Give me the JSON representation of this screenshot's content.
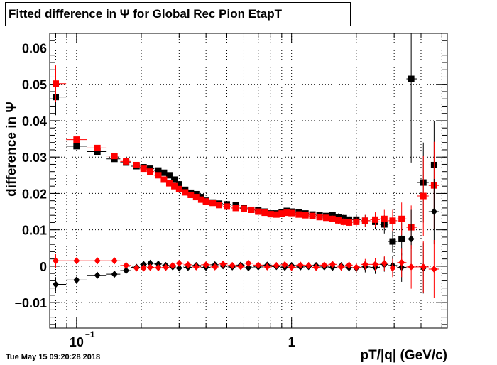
{
  "chart_data": {
    "type": "scatter",
    "title": "Fitted difference in  Ψ  for Global Rec Pion EtapT",
    "xlabel": "pT/|q| (GeV/c)",
    "ylabel": "difference in Ψ",
    "x_scale": "log",
    "xlim": [
      0.075,
      5.3
    ],
    "ylim": [
      -0.017,
      0.064
    ],
    "grid": true,
    "x_tick_labels": [
      {
        "value": 0.1,
        "base": "10",
        "exp": "−1"
      },
      {
        "value": 1,
        "base": "1",
        "exp": ""
      }
    ],
    "y_ticks": [
      -0.01,
      0,
      0.01,
      0.02,
      0.03,
      0.04,
      0.05,
      0.06
    ],
    "y_tick_labels": [
      "−0.01",
      "0",
      "0.01",
      "0.02",
      "0.03",
      "0.04",
      "0.05",
      "0.06"
    ],
    "series": [
      {
        "color": "#000000",
        "marker": "square",
        "x": [
          0.08,
          0.1,
          0.125,
          0.15,
          0.17,
          0.19,
          0.205,
          0.22,
          0.24,
          0.255,
          0.27,
          0.285,
          0.3,
          0.32,
          0.34,
          0.36,
          0.38,
          0.4,
          0.43,
          0.46,
          0.5,
          0.55,
          0.6,
          0.65,
          0.7,
          0.75,
          0.8,
          0.85,
          0.9,
          0.95,
          1.0,
          1.08,
          1.16,
          1.25,
          1.35,
          1.45,
          1.55,
          1.65,
          1.75,
          1.85,
          2.0,
          2.2,
          2.45,
          2.7,
          2.95,
          3.25,
          3.6,
          4.1,
          4.6
        ],
        "y": [
          0.0465,
          0.033,
          0.0315,
          0.0295,
          0.0285,
          0.0275,
          0.0272,
          0.0268,
          0.0263,
          0.0257,
          0.025,
          0.0238,
          0.0225,
          0.021,
          0.0202,
          0.0198,
          0.019,
          0.018,
          0.0175,
          0.0172,
          0.017,
          0.0168,
          0.016,
          0.0155,
          0.0153,
          0.015,
          0.0145,
          0.0145,
          0.0148,
          0.0152,
          0.015,
          0.0148,
          0.0145,
          0.0142,
          0.014,
          0.0138,
          0.014,
          0.0135,
          0.0132,
          0.0128,
          0.0128,
          0.0125,
          0.0122,
          0.0115,
          0.0068,
          0.0075,
          0.0515,
          0.023,
          0.0278
        ],
        "y_err": [
          0.005,
          0.0008,
          0.0006,
          0.0005,
          0.0004,
          0.0004,
          0.0004,
          0.0004,
          0.0004,
          0.0004,
          0.0004,
          0.0004,
          0.0004,
          0.0004,
          0.0004,
          0.0004,
          0.0004,
          0.0004,
          0.0004,
          0.0004,
          0.0004,
          0.0004,
          0.0005,
          0.0005,
          0.0005,
          0.0005,
          0.0005,
          0.0005,
          0.0006,
          0.0006,
          0.0006,
          0.0006,
          0.0007,
          0.0007,
          0.0008,
          0.0008,
          0.0009,
          0.001,
          0.0011,
          0.0012,
          0.0014,
          0.0016,
          0.002,
          0.0025,
          0.003,
          0.0045,
          0.023,
          0.011,
          0.012
        ]
      },
      {
        "color": "#ff0000",
        "marker": "square",
        "x": [
          0.08,
          0.1,
          0.125,
          0.15,
          0.17,
          0.19,
          0.205,
          0.22,
          0.24,
          0.255,
          0.27,
          0.285,
          0.3,
          0.32,
          0.34,
          0.36,
          0.38,
          0.4,
          0.43,
          0.46,
          0.5,
          0.55,
          0.6,
          0.65,
          0.7,
          0.75,
          0.8,
          0.85,
          0.9,
          0.95,
          1.0,
          1.08,
          1.16,
          1.25,
          1.35,
          1.45,
          1.55,
          1.65,
          1.75,
          1.85,
          2.0,
          2.2,
          2.45,
          2.7,
          2.95,
          3.25,
          3.6,
          4.1,
          4.6
        ],
        "y": [
          0.0502,
          0.0348,
          0.0325,
          0.0303,
          0.0288,
          0.0278,
          0.0268,
          0.026,
          0.025,
          0.0238,
          0.0228,
          0.022,
          0.0212,
          0.0203,
          0.0196,
          0.019,
          0.0183,
          0.0178,
          0.0174,
          0.0168,
          0.0164,
          0.016,
          0.0158,
          0.0155,
          0.015,
          0.0147,
          0.0143,
          0.0142,
          0.0145,
          0.0147,
          0.0146,
          0.0142,
          0.014,
          0.0138,
          0.0135,
          0.0133,
          0.013,
          0.0126,
          0.0122,
          0.012,
          0.0122,
          0.0125,
          0.0128,
          0.013,
          0.0125,
          0.013,
          0.0107,
          0.0193,
          0.0222
        ],
        "y_err": [
          0.005,
          0.0008,
          0.0006,
          0.0005,
          0.0004,
          0.0004,
          0.0004,
          0.0004,
          0.0004,
          0.0004,
          0.0004,
          0.0004,
          0.0004,
          0.0004,
          0.0004,
          0.0004,
          0.0004,
          0.0004,
          0.0004,
          0.0004,
          0.0004,
          0.0004,
          0.0005,
          0.0005,
          0.0005,
          0.0005,
          0.0005,
          0.0005,
          0.0006,
          0.0006,
          0.0006,
          0.0006,
          0.0007,
          0.0007,
          0.0008,
          0.0008,
          0.0009,
          0.001,
          0.0011,
          0.0012,
          0.0014,
          0.0016,
          0.002,
          0.0025,
          0.003,
          0.0045,
          0.006,
          0.011,
          0.012
        ]
      },
      {
        "color": "#000000",
        "marker": "diamond",
        "x": [
          0.08,
          0.1,
          0.125,
          0.15,
          0.17,
          0.19,
          0.205,
          0.22,
          0.24,
          0.26,
          0.28,
          0.3,
          0.33,
          0.36,
          0.4,
          0.44,
          0.48,
          0.53,
          0.58,
          0.63,
          0.7,
          0.77,
          0.85,
          0.93,
          1.0,
          1.1,
          1.2,
          1.3,
          1.42,
          1.55,
          1.7,
          1.85,
          2.0,
          2.2,
          2.45,
          2.7,
          2.95,
          3.25,
          3.6,
          4.1,
          4.6
        ],
        "y": [
          -0.005,
          -0.0038,
          -0.0025,
          -0.0022,
          -0.0012,
          -0.0003,
          0.0005,
          0.0008,
          0.0006,
          0.0002,
          -0.0002,
          -0.0005,
          -0.0003,
          0.0002,
          -0.0003,
          0.0004,
          0.0001,
          -0.0002,
          0.0003,
          -0.0004,
          -0.0002,
          0.0003,
          -0.0001,
          -0.0003,
          0.0002,
          -0.0002,
          -0.0001,
          0.0002,
          -0.0002,
          -0.0003,
          0.0001,
          -0.0004,
          -0.0005,
          -0.0002,
          -0.0003,
          0.0005,
          0.0002,
          -0.0003,
          0.0075,
          -0.0005,
          0.015
        ],
        "y_err": [
          0.002,
          0.0008,
          0.0006,
          0.0005,
          0.0004,
          0.0004,
          0.0004,
          0.0004,
          0.0004,
          0.0004,
          0.0004,
          0.0004,
          0.0004,
          0.0004,
          0.0004,
          0.0004,
          0.0004,
          0.0004,
          0.0004,
          0.0005,
          0.0005,
          0.0005,
          0.0005,
          0.0006,
          0.0006,
          0.0006,
          0.0007,
          0.0007,
          0.0008,
          0.0009,
          0.001,
          0.0011,
          0.0013,
          0.0015,
          0.0018,
          0.002,
          0.0025,
          0.004,
          0.008,
          0.007,
          0.009
        ]
      },
      {
        "color": "#ff0000",
        "marker": "diamond",
        "x": [
          0.08,
          0.1,
          0.125,
          0.15,
          0.17,
          0.19,
          0.205,
          0.22,
          0.24,
          0.26,
          0.28,
          0.3,
          0.33,
          0.36,
          0.4,
          0.44,
          0.48,
          0.53,
          0.58,
          0.63,
          0.7,
          0.77,
          0.85,
          0.93,
          1.0,
          1.1,
          1.2,
          1.3,
          1.42,
          1.55,
          1.7,
          1.85,
          2.0,
          2.2,
          2.45,
          2.7,
          2.95,
          3.25,
          3.6,
          4.1,
          4.6
        ],
        "y": [
          0.0015,
          0.0015,
          0.0015,
          0.0015,
          0.0002,
          -0.0005,
          -0.0005,
          -0.0003,
          -0.0004,
          -0.0003,
          0.0002,
          0.0008,
          0.0004,
          -0.0002,
          0.0004,
          -0.0002,
          0.0006,
          0.0002,
          -0.0001,
          0.0008,
          0.0003,
          -0.0002,
          0.0002,
          0.0004,
          -0.0003,
          0.0003,
          0.0002,
          -0.0003,
          0.0003,
          0.0005,
          -0.0002,
          0.0003,
          -0.0003,
          0.0005,
          0.0005,
          0.0008,
          -0.0005,
          0.001,
          -0.0002,
          -0.0002,
          -0.0008
        ],
        "y_err": [
          0.002,
          0.0008,
          0.0006,
          0.0005,
          0.0004,
          0.0004,
          0.0004,
          0.0004,
          0.0004,
          0.0004,
          0.0004,
          0.0004,
          0.0004,
          0.0004,
          0.0004,
          0.0004,
          0.0004,
          0.0004,
          0.0004,
          0.0005,
          0.0005,
          0.0005,
          0.0005,
          0.0006,
          0.0006,
          0.0006,
          0.0007,
          0.0007,
          0.0008,
          0.0009,
          0.001,
          0.0011,
          0.0013,
          0.0015,
          0.0018,
          0.002,
          0.0025,
          0.004,
          0.006,
          0.007,
          0.008
        ]
      }
    ]
  },
  "footer": {
    "timestamp": "Tue May 15 09:20:28 2018"
  }
}
